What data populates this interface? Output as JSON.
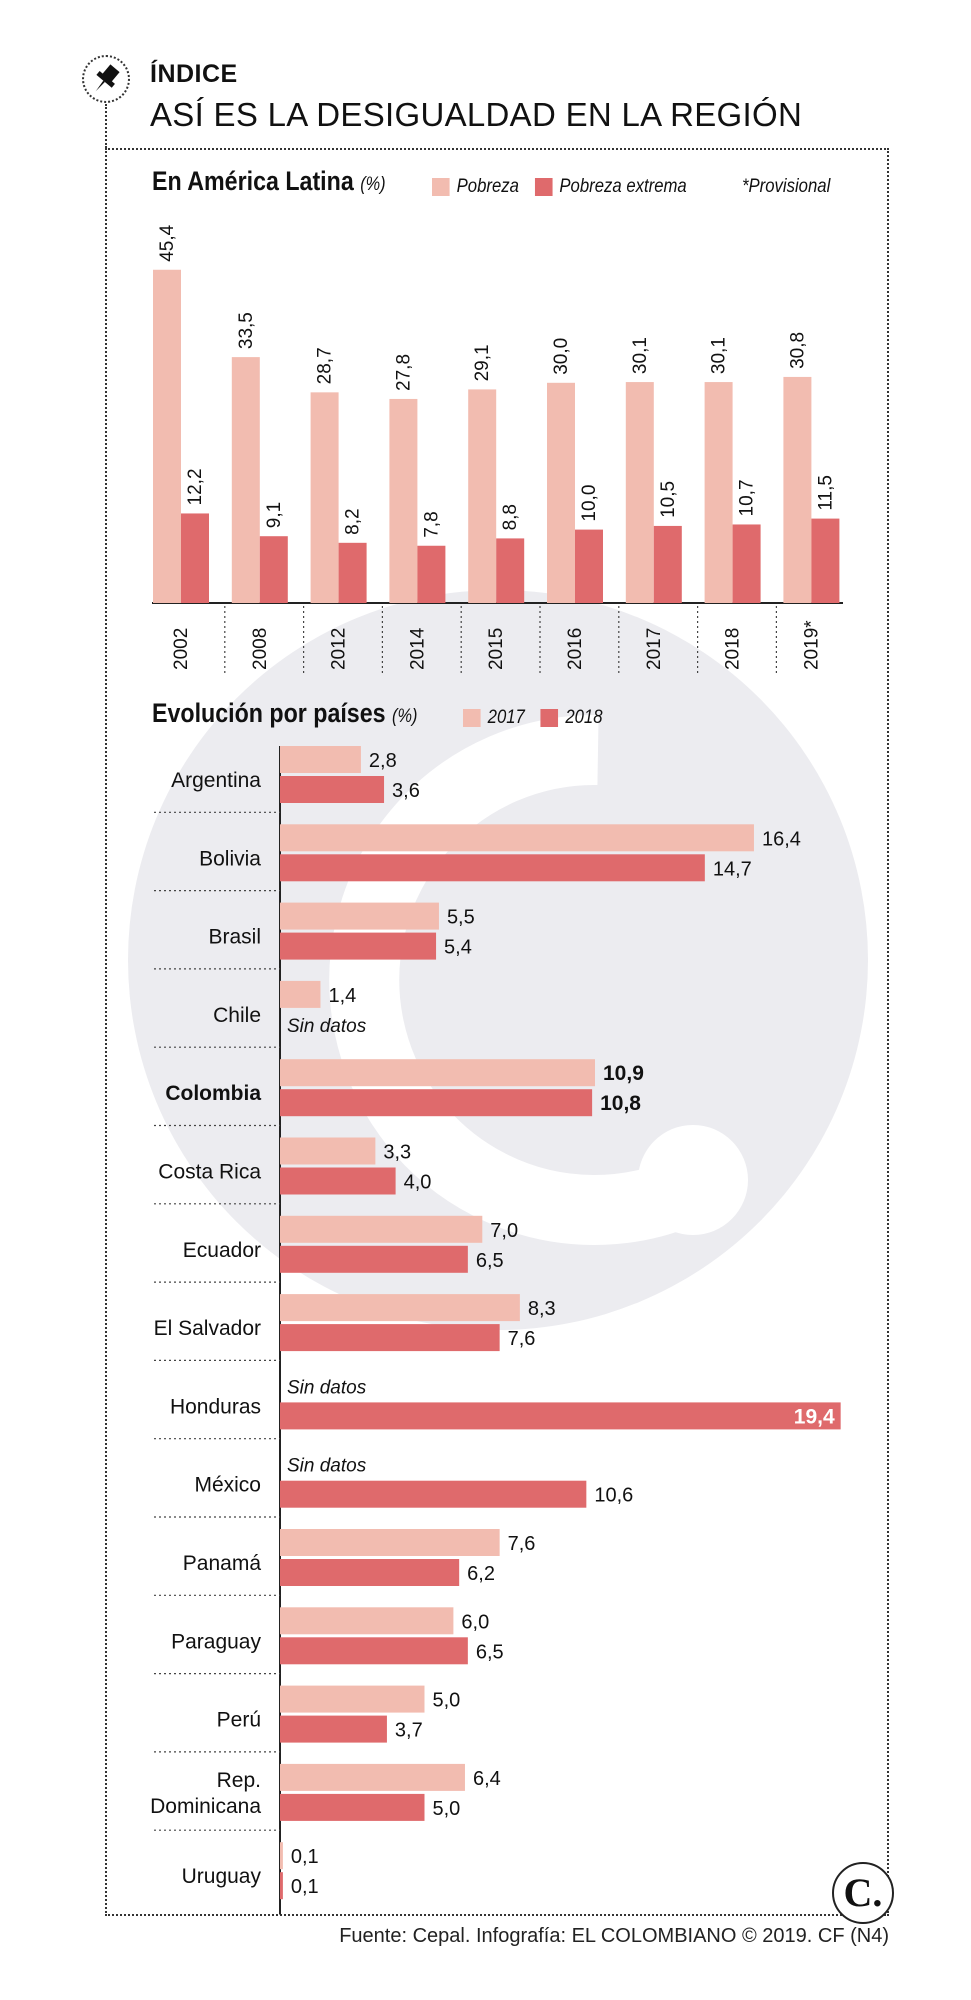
{
  "header": {
    "kicker": "ÍNDICE",
    "title": "ASÍ ES LA DESIGUALDAD EN LA REGIÓN"
  },
  "colors": {
    "pobreza": "#f2bcb0",
    "pobreza_extrema": "#df6a6c",
    "y2017": "#f2bcb0",
    "y2018": "#df6a6c",
    "watermark": "#ececf0"
  },
  "chart_data": [
    {
      "type": "bar",
      "title": "En América Latina",
      "unit": "(%)",
      "note": "*Provisional",
      "categories": [
        "2002",
        "2008",
        "2012",
        "2014",
        "2015",
        "2016",
        "2017",
        "2018",
        "2019*"
      ],
      "series": [
        {
          "name": "Pobreza",
          "values": [
            45.4,
            33.5,
            28.7,
            27.8,
            29.1,
            30.0,
            30.1,
            30.1,
            30.8
          ],
          "labels": [
            "45,4",
            "33,5",
            "28,7",
            "27,8",
            "29,1",
            "30,0",
            "30,1",
            "30,1",
            "30,8"
          ]
        },
        {
          "name": "Pobreza extrema",
          "values": [
            12.2,
            9.1,
            8.2,
            7.8,
            8.8,
            10.0,
            10.5,
            10.7,
            11.5
          ],
          "labels": [
            "12,2",
            "9,1",
            "8,2",
            "7,8",
            "8,8",
            "10,0",
            "10,5",
            "10,7",
            "11,5"
          ]
        }
      ],
      "ylim": [
        0,
        50
      ]
    },
    {
      "type": "bar",
      "orientation": "horizontal",
      "title": "Evolución por países",
      "unit": "(%)",
      "series_names": [
        "2017",
        "2018"
      ],
      "missing_label": "Sin datos",
      "xlim": [
        0,
        19.4
      ],
      "countries": [
        {
          "name": "Argentina",
          "v2017": 2.8,
          "l2017": "2,8",
          "v2018": 3.6,
          "l2018": "3,6"
        },
        {
          "name": "Bolivia",
          "v2017": 16.4,
          "l2017": "16,4",
          "v2018": 14.7,
          "l2018": "14,7"
        },
        {
          "name": "Brasil",
          "v2017": 5.5,
          "l2017": "5,5",
          "v2018": 5.4,
          "l2018": "5,4"
        },
        {
          "name": "Chile",
          "v2017": 1.4,
          "l2017": "1,4",
          "v2018": null,
          "l2018": null
        },
        {
          "name": "Colombia",
          "v2017": 10.9,
          "l2017": "10,9",
          "v2018": 10.8,
          "l2018": "10,8",
          "highlight": true
        },
        {
          "name": "Costa Rica",
          "v2017": 3.3,
          "l2017": "3,3",
          "v2018": 4.0,
          "l2018": "4,0"
        },
        {
          "name": "Ecuador",
          "v2017": 7.0,
          "l2017": "7,0",
          "v2018": 6.5,
          "l2018": "6,5"
        },
        {
          "name": "El Salvador",
          "v2017": 8.3,
          "l2017": "8,3",
          "v2018": 7.6,
          "l2018": "7,6"
        },
        {
          "name": "Honduras",
          "v2017": null,
          "l2017": null,
          "v2018": 19.4,
          "l2018": "19,4"
        },
        {
          "name": "México",
          "v2017": null,
          "l2017": null,
          "v2018": 10.6,
          "l2018": "10,6"
        },
        {
          "name": "Panamá",
          "v2017": 7.6,
          "l2017": "7,6",
          "v2018": 6.2,
          "l2018": "6,2"
        },
        {
          "name": "Paraguay",
          "v2017": 6.0,
          "l2017": "6,0",
          "v2018": 6.5,
          "l2018": "6,5"
        },
        {
          "name": "Perú",
          "v2017": 5.0,
          "l2017": "5,0",
          "v2018": 3.7,
          "l2018": "3,7"
        },
        {
          "name": "Rep. Dominicana",
          "lines": [
            "Rep.",
            "Dominicana"
          ],
          "v2017": 6.4,
          "l2017": "6,4",
          "v2018": 5.0,
          "l2018": "5,0"
        },
        {
          "name": "Uruguay",
          "v2017": 0.1,
          "l2017": "0,1",
          "v2018": 0.1,
          "l2018": "0,1"
        }
      ]
    }
  ],
  "footer": {
    "source": "Fuente: Cepal. Infografía: EL COLOMBIANO © 2019. CF (N4)",
    "logo": "C."
  }
}
